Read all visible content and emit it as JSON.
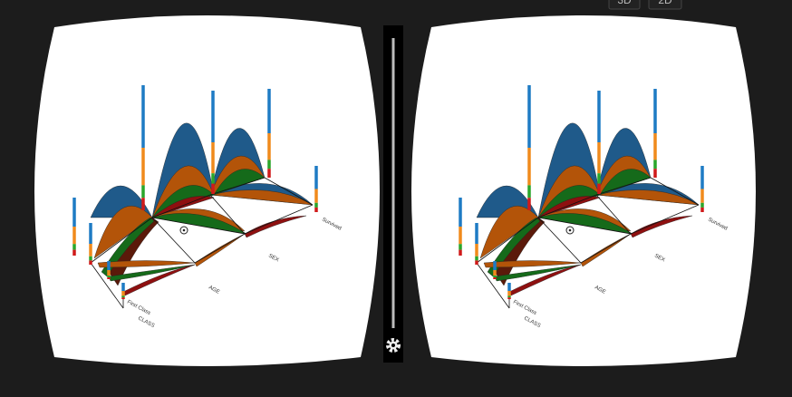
{
  "toolbar": {
    "buttons": [
      "3D",
      "2D"
    ]
  },
  "chart": {
    "axes": [
      "CLASS",
      "AGE",
      "SEX",
      "Survived"
    ],
    "category_label": "First Class"
  }
}
